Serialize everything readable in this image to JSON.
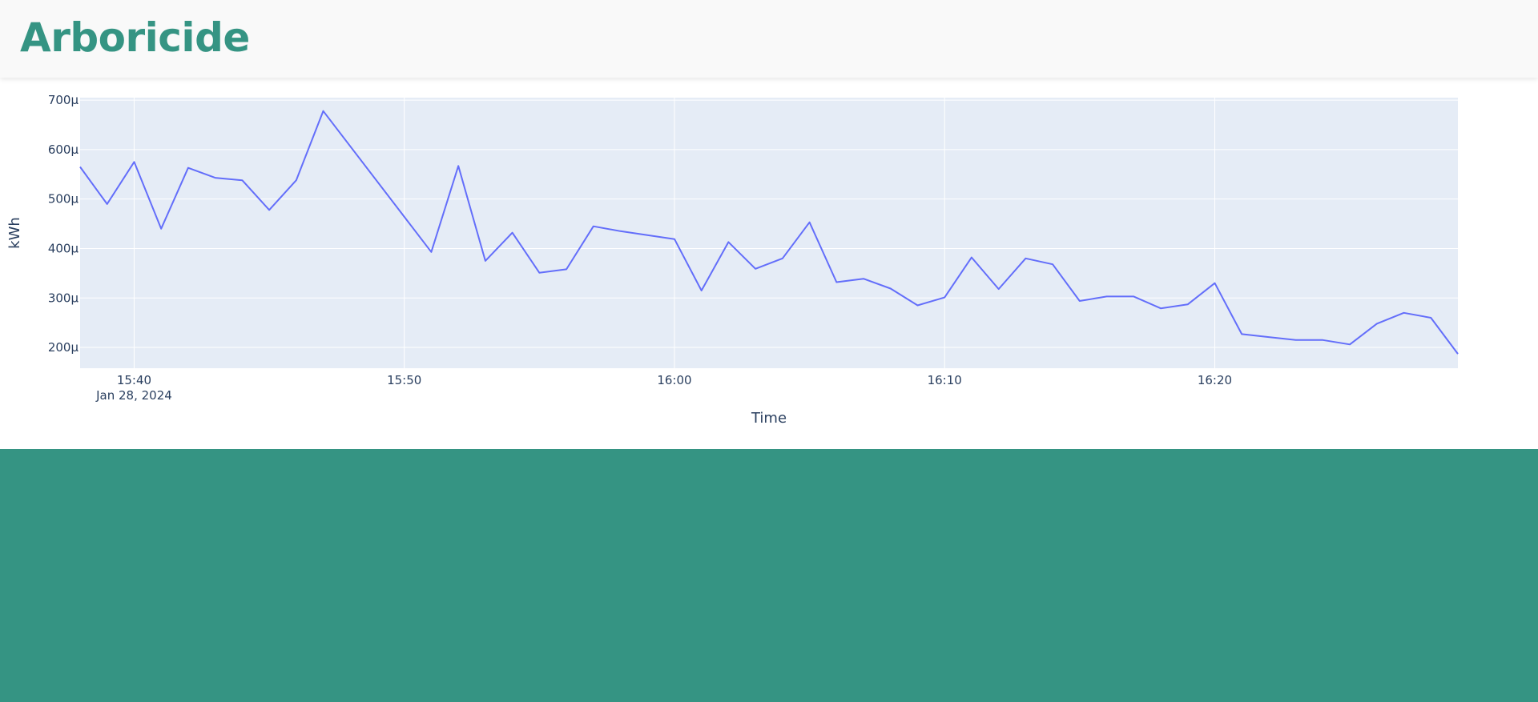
{
  "app": {
    "title": "Arboricide"
  },
  "colors": {
    "brand": "#359483",
    "header_bg": "#f9f9f9",
    "plot_bg": "#e5ecf6",
    "line": "#636efa",
    "text": "#2a3f5f"
  },
  "chart_data": {
    "type": "line",
    "x_unit": "minutes since 15:40 on Jan 28, 2024",
    "xlabel": "Time",
    "ylabel": "kWh",
    "x_ticks": [
      {
        "label": "15:40",
        "value": 0
      },
      {
        "label": "15:50",
        "value": 10
      },
      {
        "label": "16:00",
        "value": 20
      },
      {
        "label": "16:10",
        "value": 30
      },
      {
        "label": "16:20",
        "value": 40
      }
    ],
    "x_date_label": "Jan 28, 2024",
    "y_ticks": [
      {
        "label": "200µ",
        "value": 200
      },
      {
        "label": "300µ",
        "value": 300
      },
      {
        "label": "400µ",
        "value": 400
      },
      {
        "label": "500µ",
        "value": 500
      },
      {
        "label": "600µ",
        "value": 600
      },
      {
        "label": "700µ",
        "value": 700
      }
    ],
    "xlim": [
      -2,
      49
    ],
    "ylim": [
      158,
      705
    ],
    "grid": true,
    "series": [
      {
        "name": "",
        "x": [
          -2,
          -1,
          0,
          1,
          2,
          3,
          4,
          5,
          6,
          7,
          11,
          12,
          13,
          14,
          15,
          16,
          17,
          18,
          19,
          20,
          21,
          22,
          23,
          24,
          25,
          26,
          27,
          28,
          29,
          30,
          31,
          32,
          33,
          34,
          35,
          36,
          37,
          38,
          39,
          40,
          41,
          42,
          43,
          44,
          45,
          46,
          47,
          48,
          49
        ],
        "y": [
          565,
          490,
          575,
          440,
          563,
          543,
          538,
          478,
          538,
          678,
          393,
          567,
          375,
          432,
          351,
          358,
          445,
          435,
          427,
          419,
          315,
          413,
          359,
          380,
          453,
          332,
          339,
          319,
          285,
          301,
          382,
          318,
          380,
          368,
          294,
          303,
          303,
          279,
          287,
          330,
          227,
          221,
          215,
          215,
          206,
          248,
          270,
          260,
          187
        ]
      }
    ]
  }
}
